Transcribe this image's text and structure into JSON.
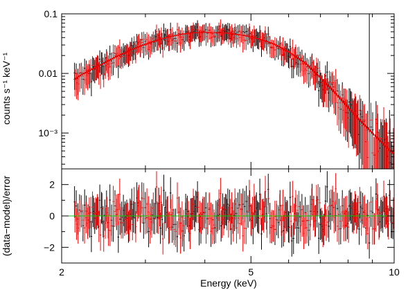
{
  "chart_data": [
    {
      "type": "scatter",
      "panel": "spectrum",
      "title": "",
      "xlabel": "",
      "ylabel": "counts s⁻¹ keV⁻¹",
      "xscale": "log",
      "yscale": "log",
      "xlim": [
        2,
        10
      ],
      "ylim": [
        0.00025,
        0.1
      ],
      "y_ticks": [
        0.1,
        0.01,
        0.001
      ],
      "y_tick_labels": [
        "0.1",
        "0.01",
        "10⁻³"
      ],
      "grid": false,
      "series_style": {
        "colors": [
          "#000000",
          "#ff0000"
        ],
        "model": "histogram step lines through the data points"
      },
      "model_curve": {
        "x": [
          2.05,
          2.2,
          2.4,
          2.6,
          2.8,
          3.0,
          3.2,
          3.4,
          3.6,
          3.8,
          4.0,
          4.4,
          4.8,
          5.2,
          5.6,
          6.0,
          6.5,
          7.0,
          7.5,
          8.0,
          8.5,
          9.0,
          9.5,
          9.95
        ],
        "y": [
          0.0065,
          0.0095,
          0.0135,
          0.019,
          0.025,
          0.031,
          0.037,
          0.042,
          0.046,
          0.048,
          0.049,
          0.048,
          0.044,
          0.038,
          0.031,
          0.023,
          0.015,
          0.0085,
          0.0048,
          0.0027,
          0.0016,
          0.001,
          0.00065,
          0.00045
        ]
      }
    },
    {
      "type": "scatter",
      "panel": "residuals",
      "title": "",
      "xlabel": "Energy (keV)",
      "ylabel": "(data−model)/error",
      "xscale": "log",
      "xlim": [
        2,
        10
      ],
      "ylim": [
        -3,
        3
      ],
      "x_ticks": [
        2,
        5,
        10
      ],
      "x_tick_labels": [
        "2",
        "5",
        "10"
      ],
      "y_ticks": [
        2,
        0,
        -2
      ],
      "y_tick_labels": [
        "2",
        "0",
        "−2"
      ],
      "grid": false,
      "zero_line": {
        "value": 0,
        "color": "#00cc00"
      },
      "series_style": {
        "colors": [
          "#000000",
          "#ff0000"
        ]
      }
    }
  ]
}
